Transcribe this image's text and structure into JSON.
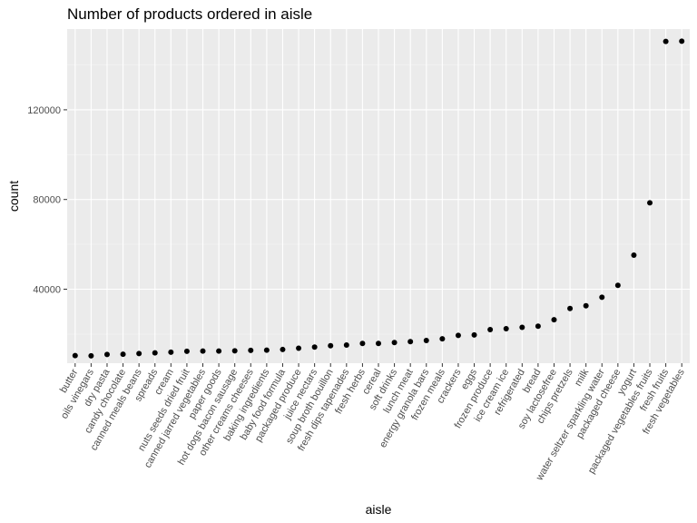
{
  "chart_data": {
    "type": "scatter",
    "title": "Number of products ordered in aisle",
    "xlabel": "aisle",
    "ylabel": "count",
    "ylim": [
      7000,
      156000
    ],
    "yticks": [
      40000,
      80000,
      120000
    ],
    "ytick_labels": [
      "40000",
      "80000",
      "120000"
    ],
    "grid": true,
    "categories": [
      "butter",
      "oils vinegars",
      "dry pasta",
      "candy chocolate",
      "canned meals beans",
      "spreads",
      "cream",
      "nuts seeds dried fruit",
      "canned jarred vegetables",
      "paper goods",
      "hot dogs bacon sausage",
      "other creams cheeses",
      "baking ingredients",
      "baby food formula",
      "packaged produce",
      "juice nectars",
      "soup broth bouillon",
      "fresh dips tapenades",
      "fresh herbs",
      "cereal",
      "soft drinks",
      "lunch meat",
      "energy granola bars",
      "frozen meals",
      "crackers",
      "eggs",
      "frozen produce",
      "ice cream ice",
      "refrigerated",
      "bread",
      "soy lactosefree",
      "chips pretzels",
      "milk",
      "water seltzer sparkling water",
      "packaged cheese",
      "yogurt",
      "packaged vegetables fruits",
      "fresh fruits",
      "fresh vegetables"
    ],
    "values": [
      10400,
      10300,
      10900,
      11000,
      11300,
      11600,
      11900,
      12300,
      12400,
      12400,
      12500,
      12700,
      12800,
      13100,
      13700,
      14200,
      14800,
      15100,
      15800,
      15800,
      16200,
      16600,
      17100,
      17900,
      19400,
      19600,
      22000,
      22400,
      23000,
      23500,
      26400,
      31400,
      32600,
      36400,
      41700,
      55200,
      78500,
      150500,
      150600
    ],
    "colors": {
      "panel": "#ebebeb",
      "grid_major": "#ffffff",
      "grid_minor": "#f5f5f5",
      "point": "#000000"
    }
  }
}
